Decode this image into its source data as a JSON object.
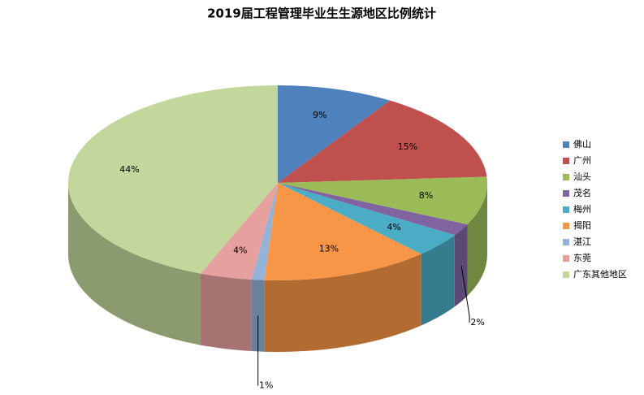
{
  "chart_data": {
    "type": "pie3d",
    "title": "2019届工程管理毕业生生源地区比例统计",
    "categories": [
      "佛山",
      "广州",
      "汕头",
      "茂名",
      "梅州",
      "揭阳",
      "湛江",
      "东莞",
      "广东其他地区"
    ],
    "values": [
      9,
      15,
      8,
      2,
      4,
      13,
      1,
      4,
      44
    ],
    "value_labels": [
      "9%",
      "15%",
      "8%",
      "2%",
      "4%",
      "13%",
      "1%",
      "4%",
      "44%"
    ],
    "colors": [
      "#4f81bd",
      "#c0504d",
      "#9bbb59",
      "#8064a2",
      "#4bacc6",
      "#f79646",
      "#95b3d7",
      "#e6a09e",
      "#c3d69b"
    ],
    "legend": "right"
  }
}
